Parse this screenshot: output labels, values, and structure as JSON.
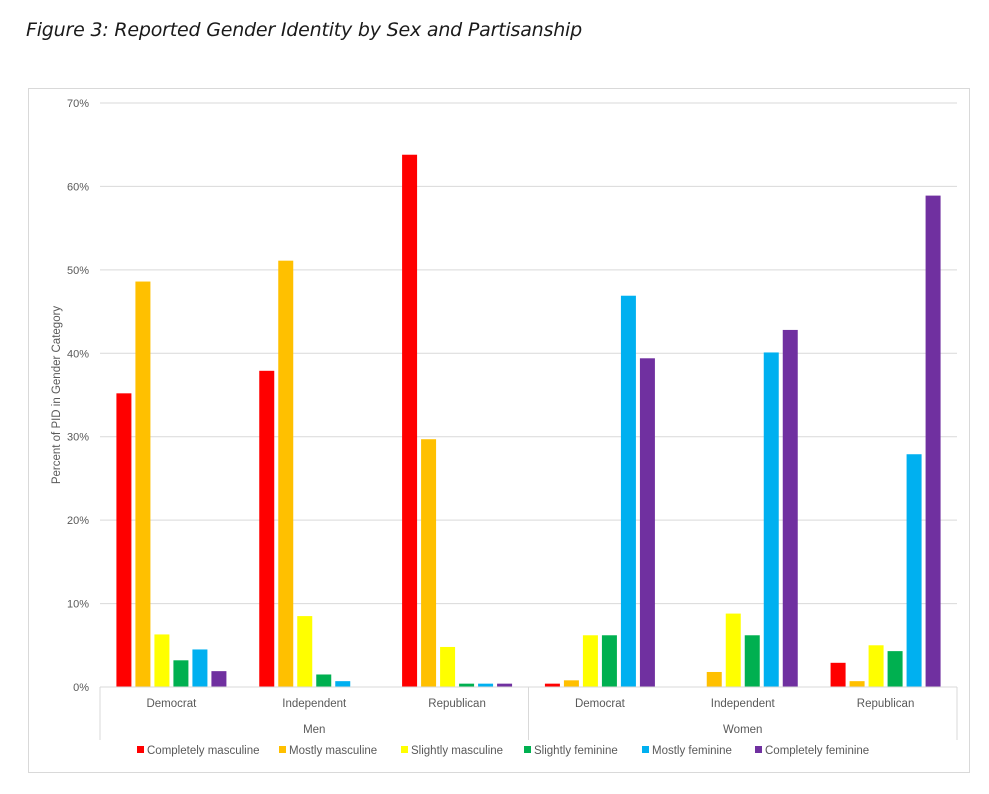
{
  "figure_title": "Figure 3: Reported Gender Identity by Sex and Partisanship",
  "chart_data": {
    "type": "bar",
    "title": "",
    "xlabel": "",
    "ylabel": "Percent of PID in Gender Category",
    "ylim": [
      0,
      70
    ],
    "yticks": [
      0,
      10,
      20,
      30,
      40,
      50,
      60,
      70
    ],
    "ytick_format": "{v}%",
    "grid": true,
    "legend_position": "bottom",
    "groups": [
      {
        "label": "Men",
        "categories": [
          "Democrat",
          "Independent",
          "Republican"
        ]
      },
      {
        "label": "Women",
        "categories": [
          "Democrat",
          "Independent",
          "Republican"
        ]
      }
    ],
    "categories": [
      "Men - Democrat",
      "Men - Independent",
      "Men - Republican",
      "Women - Democrat",
      "Women - Independent",
      "Women - Republican"
    ],
    "category_labels": [
      "Democrat",
      "Independent",
      "Republican",
      "Democrat",
      "Independent",
      "Republican"
    ],
    "series": [
      {
        "name": "Completely masculine",
        "color": "#ff0000",
        "values": [
          35.2,
          37.9,
          63.8,
          0.4,
          0,
          2.9
        ]
      },
      {
        "name": "Mostly masculine",
        "color": "#ffc000",
        "values": [
          48.6,
          51.1,
          29.7,
          0.8,
          1.8,
          0.7
        ]
      },
      {
        "name": "Slightly masculine",
        "color": "#ffff00",
        "values": [
          6.3,
          8.5,
          4.8,
          6.2,
          8.8,
          5.0
        ]
      },
      {
        "name": "Slightly feminine",
        "color": "#00b050",
        "values": [
          3.2,
          1.5,
          0.4,
          6.2,
          6.2,
          4.3
        ]
      },
      {
        "name": "Mostly feminine",
        "color": "#00b0f0",
        "values": [
          4.5,
          0.7,
          0.4,
          46.9,
          40.1,
          27.9
        ]
      },
      {
        "name": "Completely feminine",
        "color": "#7030a0",
        "values": [
          1.9,
          0,
          0.4,
          39.4,
          42.8,
          58.9
        ]
      }
    ]
  }
}
